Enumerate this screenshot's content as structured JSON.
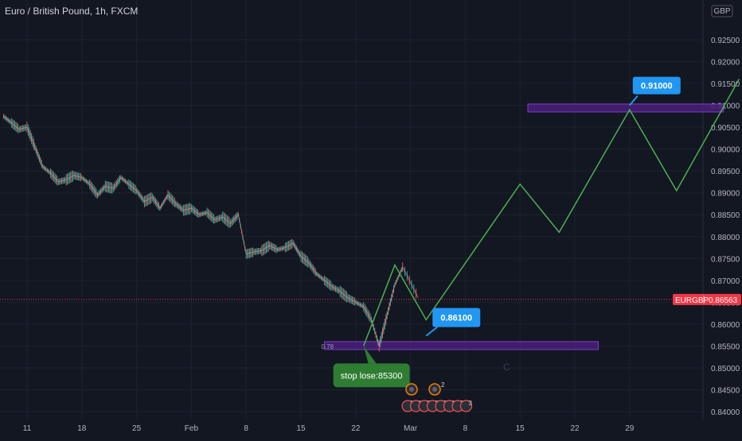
{
  "header": {
    "title": "Euro / British Pound, 1h, FXCM",
    "currency": "GBP"
  },
  "colors": {
    "background": "#131722",
    "grid": "#1e222d",
    "axis_text": "#b2b5be",
    "up": "#26a69a",
    "down": "#ef5350",
    "projection": "#4caf50",
    "zone_fill": "#4a1f7a",
    "zone_stroke": "#7b3fc4",
    "callout_blue": "#2196f3",
    "callout_green": "#2e7d32",
    "price_tag": "#f23645"
  },
  "chart_data": {
    "type": "line",
    "symbol": "EURGBP",
    "ylim": [
      0.8395,
      0.926
    ],
    "y_ticks": [
      "0.92500",
      "0.92000",
      "0.91500",
      "0.91000",
      "0.90500",
      "0.90000",
      "0.89500",
      "0.89000",
      "0.88500",
      "0.88000",
      "0.87500",
      "0.87000",
      "0.86500",
      "0.86000",
      "0.85500",
      "0.85000",
      "0.84500",
      "0.84000"
    ],
    "x_ticks": [
      "11",
      "18",
      "25",
      "Feb",
      "8",
      "15",
      "22",
      "Mar",
      "8",
      "15",
      "22",
      "29"
    ],
    "price_path": {
      "x": [
        "Jan 8",
        "Jan 9",
        "Jan 10",
        "Jan 11",
        "Jan 12",
        "Jan 13",
        "Jan 14",
        "Jan 15",
        "Jan 16",
        "Jan 17",
        "Jan 18",
        "Jan 19",
        "Jan 20",
        "Jan 21",
        "Jan 22",
        "Jan 23",
        "Jan 24",
        "Jan 25",
        "Jan 26",
        "Jan 27",
        "Jan 28",
        "Jan 29",
        "Jan 30",
        "Jan 31",
        "Feb 1",
        "Feb 2",
        "Feb 3",
        "Feb 4",
        "Feb 5",
        "Feb 6",
        "Feb 7",
        "Feb 8",
        "Feb 9",
        "Feb 10",
        "Feb 11",
        "Feb 12",
        "Feb 13",
        "Feb 14",
        "Feb 15",
        "Feb 16",
        "Feb 17",
        "Feb 18",
        "Feb 19",
        "Feb 20",
        "Feb 21",
        "Feb 22",
        "Feb 23",
        "Feb 24",
        "Feb 25",
        "Feb 26",
        "Feb 27",
        "Feb 28",
        "Mar 1"
      ],
      "y": [
        0.9075,
        0.906,
        0.9045,
        0.905,
        0.9005,
        0.896,
        0.8945,
        0.8925,
        0.893,
        0.894,
        0.8935,
        0.892,
        0.8895,
        0.8915,
        0.891,
        0.8935,
        0.892,
        0.8905,
        0.888,
        0.889,
        0.8865,
        0.8895,
        0.8875,
        0.886,
        0.8865,
        0.885,
        0.8855,
        0.8838,
        0.8845,
        0.883,
        0.885,
        0.876,
        0.8765,
        0.8768,
        0.878,
        0.877,
        0.8775,
        0.8785,
        0.8755,
        0.874,
        0.8715,
        0.87,
        0.8685,
        0.8675,
        0.866,
        0.865,
        0.864,
        0.861,
        0.855,
        0.862,
        0.869,
        0.873,
        0.866
      ]
    },
    "projection": {
      "x": [
        "Feb 23",
        "Feb 27",
        "Mar 2",
        "Mar 14",
        "Mar 19",
        "Mar 28",
        "Apr 3",
        "Apr 11"
      ],
      "y": [
        0.855,
        0.8735,
        0.861,
        0.892,
        0.881,
        0.909,
        0.8905,
        0.916
      ]
    },
    "current_price": {
      "label": "EURGBP",
      "value": "0.86563",
      "y": 0.86563
    },
    "zones": [
      {
        "x": [
          "Feb 18",
          "Mar 24"
        ],
        "y": [
          0.855,
          0.856
        ],
        "label": "0.78"
      },
      {
        "x": [
          "Mar 15",
          "Apr 9"
        ],
        "y": [
          0.9093,
          0.9103
        ],
        "label": ""
      }
    ],
    "callouts": [
      {
        "text": "0.91000",
        "x": "Mar 28",
        "y": 0.91
      },
      {
        "text": "0.86100",
        "x": "Mar 2",
        "y": 0.8615
      },
      {
        "text": "stop lose:85300",
        "x": "Feb 23",
        "y": 0.855
      }
    ],
    "events_row1": [
      "",
      "2"
    ],
    "events_row2": [
      "1",
      "14",
      "2",
      "2",
      "2",
      "1",
      "2",
      "3"
    ],
    "events_unlabeled": [
      "C"
    ]
  }
}
